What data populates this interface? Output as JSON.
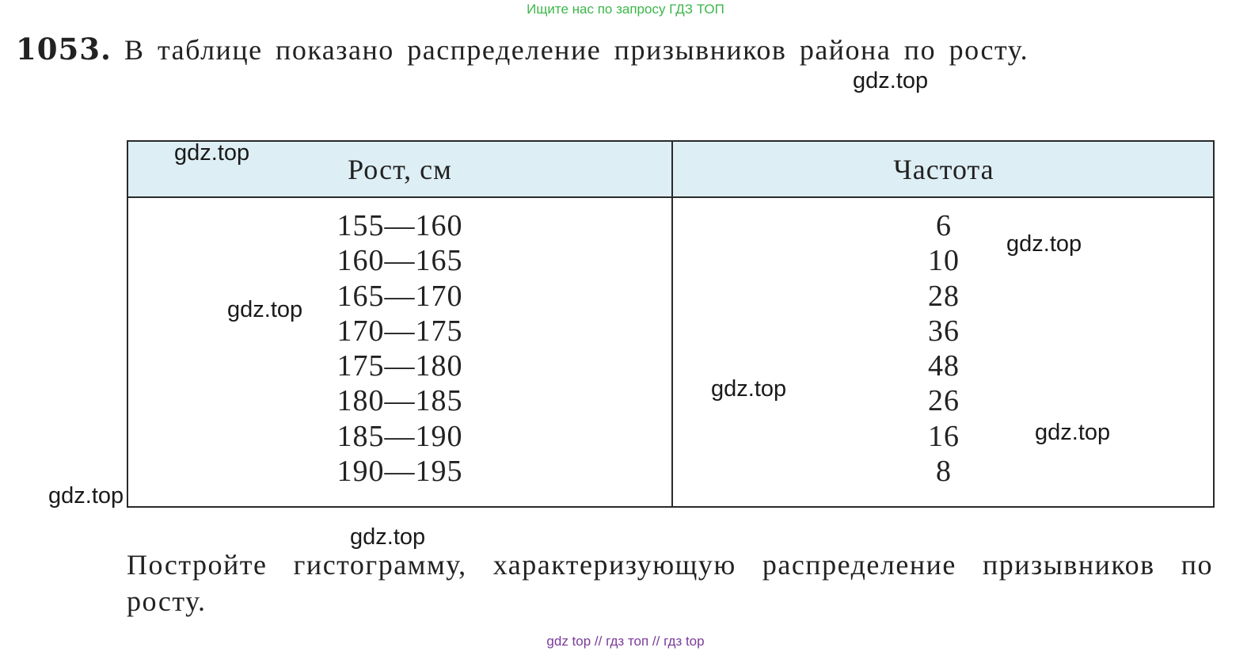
{
  "top_banner": "Ищите нас по запросу ГДЗ ТОП",
  "problem": {
    "number": "1053.",
    "statement": "В таблице показано распределение призывников района по росту."
  },
  "table": {
    "headers": [
      "Рост, см",
      "Частота"
    ],
    "heights": [
      "155—160",
      "160—165",
      "165—170",
      "170—175",
      "175—180",
      "180—185",
      "185—190",
      "190—195"
    ],
    "frequencies": [
      "6",
      "10",
      "28",
      "36",
      "48",
      "26",
      "16",
      "8"
    ]
  },
  "task": "Постройте гистограмму, характеризующую распределение призывников по росту.",
  "watermarks": [
    "gdz.top",
    "gdz.top",
    "gdz.top",
    "gdz.top",
    "gdz.top",
    "gdz.top",
    "gdz.top",
    "gdz.top"
  ],
  "bottom_banner": "gdz top // гдз топ // гдз top"
}
